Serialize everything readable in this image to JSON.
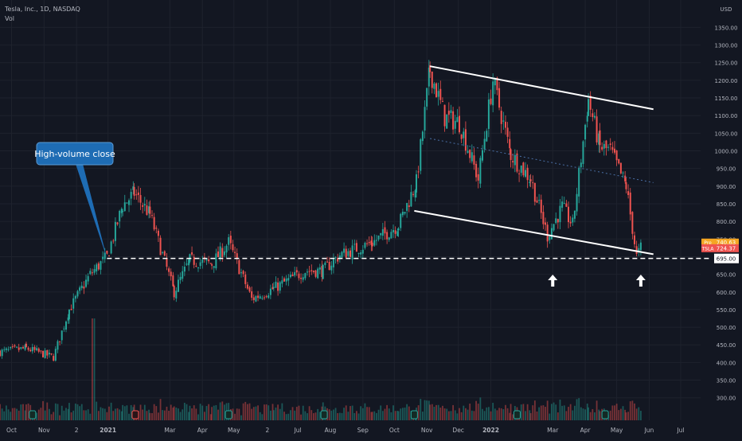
{
  "chart_header": {
    "symbol_line": "Tesla, Inc., 1D, NASDAQ",
    "volume_label": "Vol"
  },
  "colors": {
    "background": "#131722",
    "up": "#26a69a",
    "down": "#ef5350",
    "grid": "#1e222d",
    "axis_text": "#b2b5be",
    "annotation_blue": "#1e6cb4",
    "channel_line": "#ffffff",
    "midline": "#4a6fa5",
    "pre_badge": "#f5a623",
    "tsla_badge": "#ef5350"
  },
  "chart_data": {
    "type": "candlestick",
    "title": "Tesla, Inc., 1D, NASDAQ",
    "y_unit": "USD",
    "y_axis_ticks": [
      1350,
      1300,
      1250,
      1200,
      1150,
      1100,
      1050,
      1000,
      950,
      900,
      850,
      800,
      750,
      700,
      650,
      600,
      550,
      500,
      450,
      400,
      350,
      300
    ],
    "y_axis_labels": [
      "1350.00",
      "1300.00",
      "1250.00",
      "1200.00",
      "1150.00",
      "1100.00",
      "1050.00",
      "1000.00",
      "950.00",
      "900.00",
      "850.00",
      "800.00",
      "750.00",
      "700.00",
      "650.00",
      "600.00",
      "550.00",
      "500.00",
      "450.00",
      "400.00",
      "350.00",
      "300.00"
    ],
    "x_axis_labels": [
      "Oct",
      "Nov",
      "2",
      "2021",
      "Mar",
      "Apr",
      "May",
      "2",
      "Jul",
      "Aug",
      "Sep",
      "Oct",
      "Nov",
      "Dec",
      "2022",
      "Mar",
      "Apr",
      "May",
      "Jun",
      "Jul"
    ],
    "x_axis_label_dates": [
      "2020-10-01",
      "2020-11-01",
      "2020-12-02",
      "2021-01-01",
      "2021-03-01",
      "2021-04-01",
      "2021-05-01",
      "2021-06-02",
      "2021-07-01",
      "2021-08-01",
      "2021-09-01",
      "2021-10-01",
      "2021-11-01",
      "2021-12-01",
      "2022-01-01",
      "2022-03-01",
      "2022-04-01",
      "2022-05-01",
      "2022-06-01",
      "2022-07-01"
    ],
    "ylim": [
      270,
      1360
    ],
    "xlim": [
      "2020-09-20",
      "2022-07-20"
    ],
    "key_points": [
      {
        "date": "2020-09-20",
        "close": 430
      },
      {
        "date": "2020-10-15",
        "close": 440
      },
      {
        "date": "2020-11-10",
        "close": 415
      },
      {
        "date": "2020-11-25",
        "close": 550
      },
      {
        "date": "2020-12-15",
        "close": 650
      },
      {
        "date": "2020-12-31",
        "close": 700
      },
      {
        "date": "2021-01-15",
        "close": 845
      },
      {
        "date": "2021-01-26",
        "close": 880
      },
      {
        "date": "2021-02-10",
        "close": 820
      },
      {
        "date": "2021-03-05",
        "close": 600
      },
      {
        "date": "2021-03-20",
        "close": 690
      },
      {
        "date": "2021-04-10",
        "close": 680
      },
      {
        "date": "2021-04-26",
        "close": 740
      },
      {
        "date": "2021-05-18",
        "close": 580
      },
      {
        "date": "2021-06-08",
        "close": 610
      },
      {
        "date": "2021-07-08",
        "close": 660
      },
      {
        "date": "2021-07-25",
        "close": 660
      },
      {
        "date": "2021-08-10",
        "close": 705
      },
      {
        "date": "2021-09-10",
        "close": 740
      },
      {
        "date": "2021-10-05",
        "close": 790
      },
      {
        "date": "2021-10-22",
        "close": 910
      },
      {
        "date": "2021-11-04",
        "close": 1230
      },
      {
        "date": "2021-11-18",
        "close": 1095
      },
      {
        "date": "2021-12-02",
        "close": 1080
      },
      {
        "date": "2021-12-20",
        "close": 920
      },
      {
        "date": "2022-01-03",
        "close": 1200
      },
      {
        "date": "2022-01-20",
        "close": 990
      },
      {
        "date": "2022-02-08",
        "close": 920
      },
      {
        "date": "2022-02-24",
        "close": 760
      },
      {
        "date": "2022-03-10",
        "close": 840
      },
      {
        "date": "2022-03-20",
        "close": 790
      },
      {
        "date": "2022-04-04",
        "close": 1145
      },
      {
        "date": "2022-04-15",
        "close": 1010
      },
      {
        "date": "2022-04-25",
        "close": 1000
      },
      {
        "date": "2022-05-10",
        "close": 900
      },
      {
        "date": "2022-05-20",
        "close": 700
      },
      {
        "date": "2022-05-24",
        "close": 725
      }
    ],
    "volume_spike_date": "2020-12-18",
    "channel_upper": {
      "start": {
        "date": "2021-11-04",
        "price": 1240
      },
      "end": {
        "date": "2022-06-05",
        "price": 1118
      }
    },
    "channel_lower": {
      "start": {
        "date": "2021-10-20",
        "price": 830
      },
      "end": {
        "date": "2022-06-05",
        "price": 707
      }
    },
    "channel_mid": {
      "start": {
        "date": "2021-11-04",
        "price": 1035
      },
      "end": {
        "date": "2022-06-05",
        "price": 910
      }
    },
    "support_level": {
      "price": 695,
      "label": "695.00"
    },
    "arrows": [
      {
        "date": "2022-03-01"
      },
      {
        "date": "2022-05-24"
      }
    ],
    "price_badges": [
      {
        "label": "Pre",
        "value": "740.63",
        "price": 740
      },
      {
        "label": "TSLA",
        "value": "724.37",
        "price": 724
      }
    ],
    "annotation": {
      "text": "High-volume close",
      "anchor_date": "2020-12-31",
      "anchor_price": 695
    }
  }
}
